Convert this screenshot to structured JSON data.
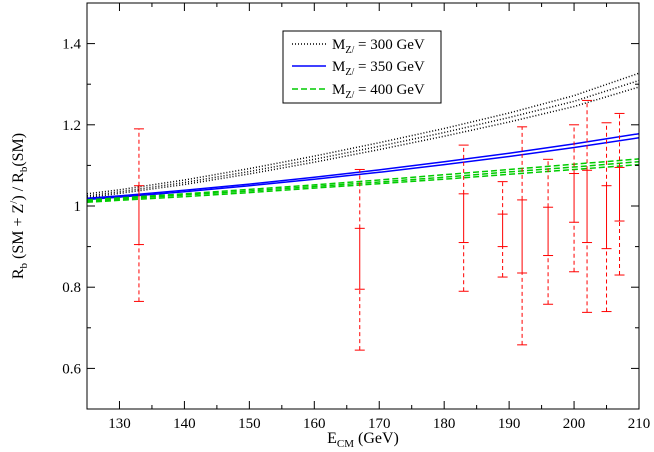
{
  "chart_data": {
    "type": "line",
    "title": "",
    "xlabel": "E_CM (GeV)",
    "xlabel_main": "E",
    "xlabel_sub": "CM",
    "xlabel_rest": " (GeV)",
    "ylabel": "R_b (SM + Z') / R_b(SM)",
    "ylabel_parts": {
      "a": "R",
      "a_sub": "b",
      "b": " (SM + Z",
      "b_sup": "/",
      "c": ") / R",
      "c_sub": "b",
      "d": "(SM)"
    },
    "xlim": [
      125,
      210
    ],
    "ylim": [
      0.5,
      1.5
    ],
    "xticks": [
      130,
      140,
      150,
      160,
      170,
      180,
      190,
      200,
      210
    ],
    "yticks": [
      0.6,
      0.8,
      1.0,
      1.2,
      1.4
    ],
    "ytick_labels": [
      "0.6",
      "0.8",
      "1",
      "1.2",
      "1.4"
    ],
    "legend_position": "top-center",
    "series": [
      {
        "name": "M_Z' = 300 GeV",
        "legend_main": "M",
        "legend_sub": "Z/",
        "legend_rest": " = 300 GeV",
        "color": "#000000",
        "style": "dotted",
        "x": [
          125,
          130,
          140,
          150,
          160,
          170,
          180,
          190,
          200,
          210
        ],
        "bands": [
          [
            1.03,
            1.04,
            1.064,
            1.092,
            1.123,
            1.156,
            1.191,
            1.229,
            1.272,
            1.327
          ],
          [
            1.025,
            1.035,
            1.058,
            1.085,
            1.115,
            1.147,
            1.181,
            1.218,
            1.258,
            1.309
          ],
          [
            1.021,
            1.031,
            1.053,
            1.079,
            1.108,
            1.139,
            1.172,
            1.207,
            1.245,
            1.293
          ]
        ]
      },
      {
        "name": "M_Z' = 350 GeV",
        "legend_main": "M",
        "legend_sub": "Z/",
        "legend_rest": " = 350 GeV",
        "color": "#0000ff",
        "style": "solid",
        "x": [
          125,
          130,
          140,
          150,
          160,
          170,
          180,
          190,
          200,
          210
        ],
        "bands": [
          [
            1.019,
            1.025,
            1.039,
            1.054,
            1.071,
            1.089,
            1.109,
            1.13,
            1.153,
            1.178
          ],
          [
            1.016,
            1.022,
            1.035,
            1.05,
            1.066,
            1.083,
            1.102,
            1.122,
            1.144,
            1.168
          ]
        ]
      },
      {
        "name": "M_Z' = 400 GeV",
        "legend_main": "M",
        "legend_sub": "Z/",
        "legend_rest": " = 400 GeV",
        "color": "#00cc00",
        "style": "dashed",
        "x": [
          125,
          130,
          140,
          150,
          160,
          170,
          180,
          190,
          200,
          210
        ],
        "bands": [
          [
            1.015,
            1.02,
            1.03,
            1.041,
            1.052,
            1.064,
            1.077,
            1.09,
            1.103,
            1.116
          ],
          [
            1.012,
            1.017,
            1.027,
            1.037,
            1.048,
            1.059,
            1.071,
            1.084,
            1.096,
            1.109
          ],
          [
            1.009,
            1.014,
            1.023,
            1.033,
            1.044,
            1.055,
            1.066,
            1.078,
            1.09,
            1.102
          ]
        ]
      }
    ],
    "error_bars": {
      "name": "data",
      "color": "#ff0000",
      "points": [
        {
          "x": 133,
          "inner": [
            0.905,
            1.05
          ],
          "outer": [
            0.765,
            1.19
          ]
        },
        {
          "x": 167,
          "inner": [
            0.795,
            0.945
          ],
          "outer": [
            0.645,
            1.09
          ]
        },
        {
          "x": 183,
          "inner": [
            0.91,
            1.03
          ],
          "outer": [
            0.79,
            1.15
          ]
        },
        {
          "x": 189,
          "inner": [
            0.9,
            0.98
          ],
          "outer": [
            0.825,
            1.06
          ]
        },
        {
          "x": 192,
          "inner": [
            0.835,
            1.015
          ],
          "outer": [
            0.658,
            1.195
          ]
        },
        {
          "x": 196,
          "inner": [
            0.878,
            0.997
          ],
          "outer": [
            0.758,
            1.115
          ]
        },
        {
          "x": 200,
          "inner": [
            0.96,
            1.08
          ],
          "outer": [
            0.838,
            1.2
          ]
        },
        {
          "x": 202,
          "inner": [
            0.91,
            1.088
          ],
          "outer": [
            0.738,
            1.26
          ]
        },
        {
          "x": 205,
          "inner": [
            0.895,
            1.05
          ],
          "outer": [
            0.74,
            1.205
          ]
        },
        {
          "x": 207,
          "inner": [
            0.963,
            1.095
          ],
          "outer": [
            0.83,
            1.228
          ]
        }
      ]
    }
  }
}
